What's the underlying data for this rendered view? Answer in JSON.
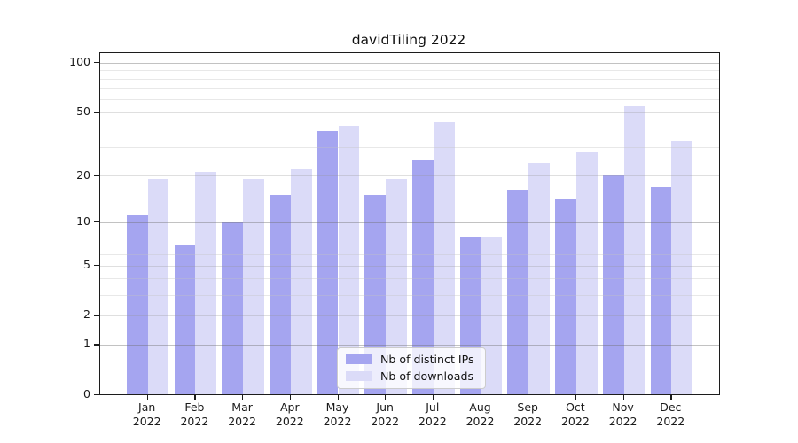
{
  "title": "davidTiling 2022",
  "chart_data": {
    "type": "bar",
    "title": "davidTiling 2022",
    "categories": [
      "Jan 2022",
      "Feb 2022",
      "Mar 2022",
      "Apr 2022",
      "May 2022",
      "Jun 2022",
      "Jul 2022",
      "Aug 2022",
      "Sep 2022",
      "Oct 2022",
      "Nov 2022",
      "Dec 2022"
    ],
    "series": [
      {
        "name": "Nb of distinct IPs",
        "color": "#a5a5f0",
        "values": [
          11,
          7,
          10,
          15,
          38,
          15,
          25,
          8,
          16,
          14,
          20,
          17
        ]
      },
      {
        "name": "Nb of downloads",
        "color": "#dbdbf8",
        "values": [
          19,
          21,
          19,
          22,
          41,
          19,
          43,
          8,
          24,
          28,
          54,
          33
        ]
      }
    ],
    "yscale": "log1p",
    "ylim": [
      0,
      120
    ],
    "yticks": [
      0,
      1,
      2,
      5,
      10,
      20,
      50,
      100
    ],
    "yticks_major_grid": [
      1,
      10,
      100
    ],
    "yticks_labeled_grid": [
      2,
      5,
      20,
      50
    ],
    "yticks_minor_grid": [
      3,
      4,
      6,
      7,
      8,
      9,
      30,
      40,
      60,
      70,
      80,
      90
    ],
    "grid": true,
    "legend_position": "lower center"
  },
  "legend": {
    "items": [
      {
        "label": "Nb of distinct IPs"
      },
      {
        "label": "Nb of downloads"
      }
    ]
  }
}
